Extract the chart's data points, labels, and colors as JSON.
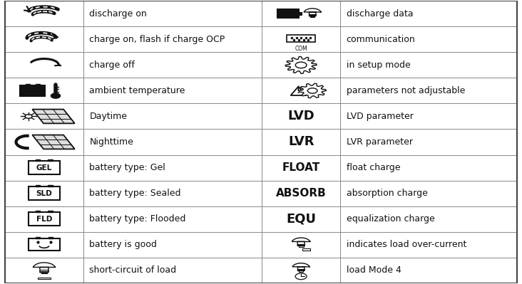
{
  "rows": [
    {
      "left_label": "discharge on",
      "right_bold": "",
      "right_label": "discharge data"
    },
    {
      "left_label": "charge on, flash if charge OCP",
      "right_bold": "",
      "right_label": "communication"
    },
    {
      "left_label": "charge off",
      "right_bold": "",
      "right_label": "in setup mode"
    },
    {
      "left_label": "ambient temperature",
      "right_bold": "",
      "right_label": "parameters not adjustable"
    },
    {
      "left_label": "Daytime",
      "right_bold": "LVD",
      "right_label": "LVD parameter"
    },
    {
      "left_label": "Nighttime",
      "right_bold": "LVR",
      "right_label": "LVR parameter"
    },
    {
      "left_label": "battery type: Gel",
      "right_bold": "FLOAT",
      "right_label": "float charge"
    },
    {
      "left_label": "battery type: Sealed",
      "right_bold": "ABSORB",
      "right_label": "absorption charge"
    },
    {
      "left_label": "battery type: Flooded",
      "right_bold": "EQU",
      "right_label": "equalization charge"
    },
    {
      "left_label": "battery is good",
      "right_bold": "",
      "right_label": "indicates load over-current"
    },
    {
      "left_label": "short-circuit of load",
      "right_bold": "",
      "right_label": "load Mode 4"
    }
  ],
  "col_borders": [
    0.008,
    0.158,
    0.502,
    0.652,
    0.992
  ],
  "bg_color": "#ffffff",
  "border_color": "#444444",
  "text_color": "#111111",
  "grid_color": "#888888",
  "fs_text": 9.0,
  "fs_bold_large": 13,
  "fs_bold_medium": 11,
  "fs_bold_small": 9.5
}
